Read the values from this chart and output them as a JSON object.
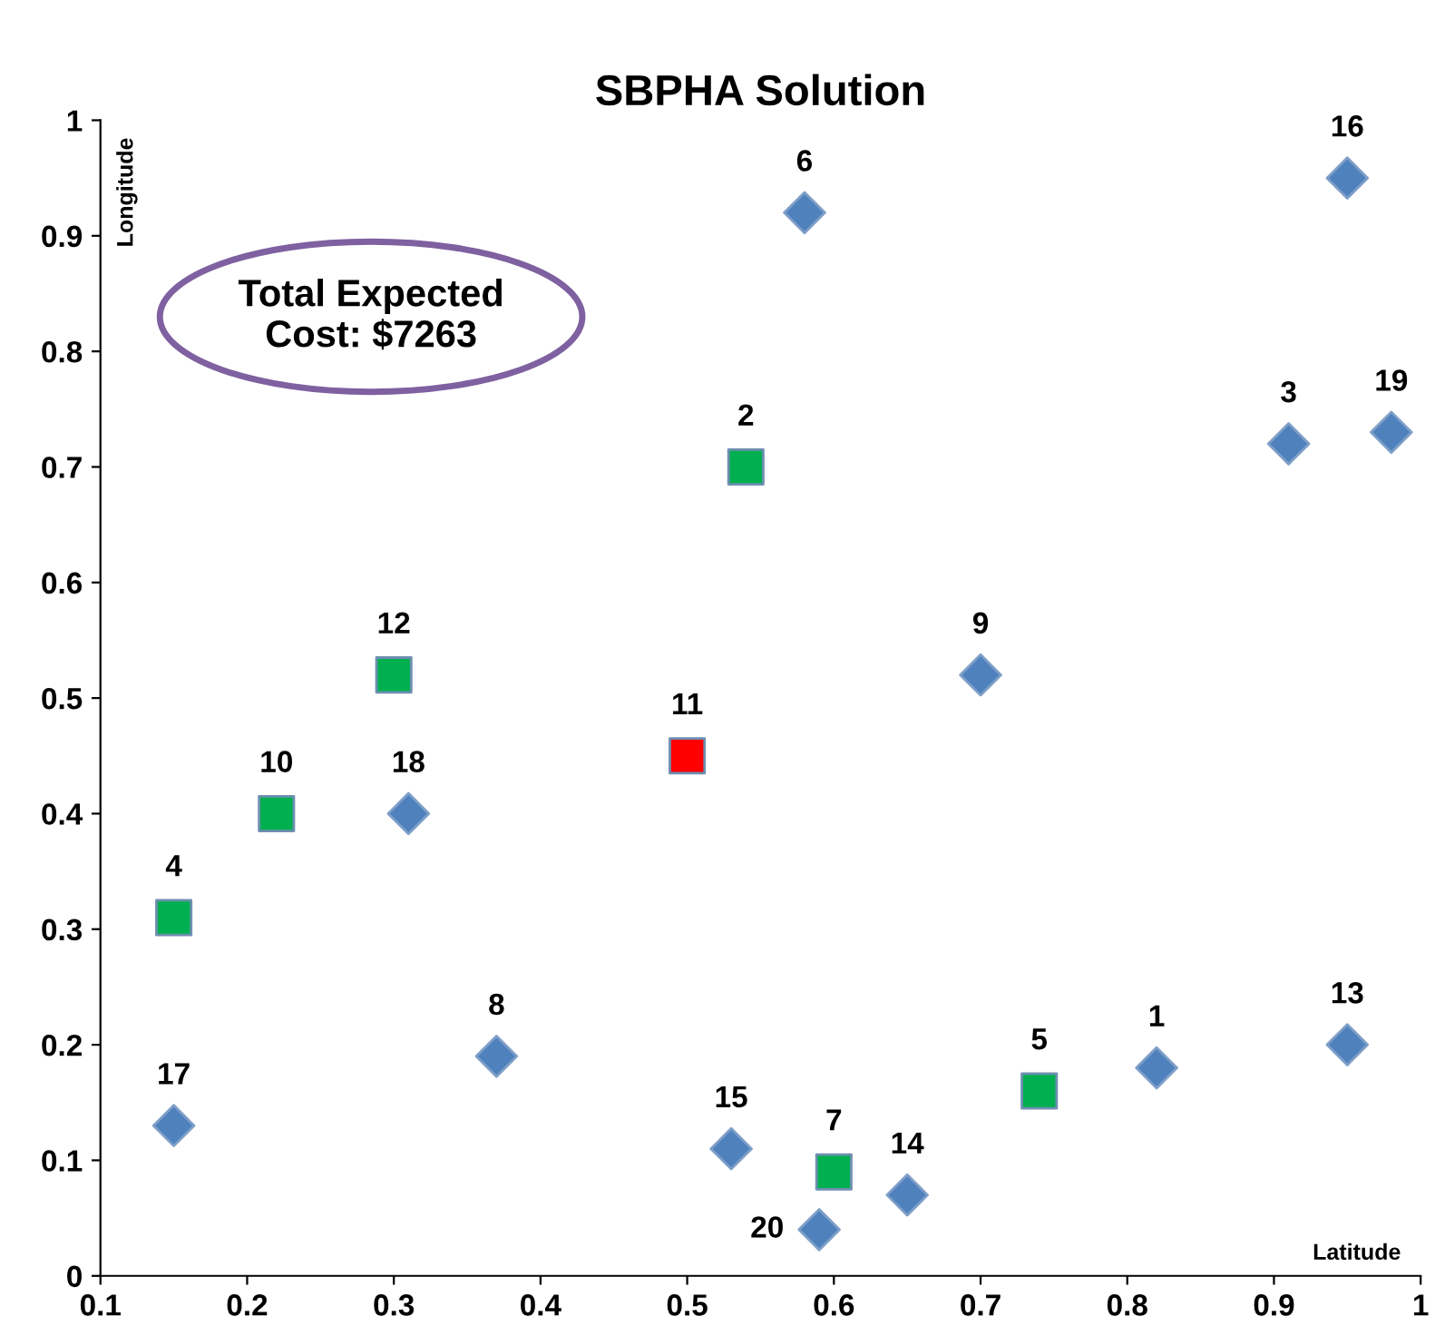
{
  "chart_data": {
    "type": "scatter",
    "title": "SBPHA Solution",
    "xlabel": "Latitude",
    "ylabel": "Longitude",
    "xlim": [
      0.1,
      1
    ],
    "ylim": [
      0,
      1
    ],
    "xticks": [
      0.1,
      0.2,
      0.3,
      0.4,
      0.5,
      0.6,
      0.7,
      0.8,
      0.9,
      1
    ],
    "yticks": [
      0,
      0.1,
      0.2,
      0.3,
      0.4,
      0.5,
      0.6,
      0.7,
      0.8,
      0.9,
      1
    ],
    "grid": false,
    "legend": false,
    "series": [
      {
        "color": "#4f81bd",
        "marker": "diamond",
        "x": [
          0.95,
          0.58,
          0.91,
          0.98,
          0.7,
          0.31,
          0.37,
          0.15,
          0.53,
          0.65,
          0.59,
          0.82,
          0.95
        ],
        "values": [
          0.95,
          0.92,
          0.72,
          0.73,
          0.52,
          0.4,
          0.19,
          0.13,
          0.11,
          0.07,
          0.04,
          0.18,
          0.2
        ]
      },
      {
        "color": "#00b050",
        "marker": "square",
        "x": [
          0.54,
          0.3,
          0.22,
          0.15,
          0.6,
          0.74
        ],
        "values": [
          0.7,
          0.52,
          0.4,
          0.31,
          0.09,
          0.16
        ]
      },
      {
        "color": "#ff0000",
        "marker": "square",
        "x": [
          0.5
        ],
        "values": [
          0.45
        ]
      }
    ],
    "annotations": [
      "Total Expected\nCost: $7263",
      {
        "text": "16",
        "x": 0.95,
        "y": 0.95
      },
      {
        "text": "6",
        "x": 0.58,
        "y": 0.92
      },
      {
        "text": "3",
        "x": 0.91,
        "y": 0.72
      },
      {
        "text": "19",
        "x": 0.98,
        "y": 0.73
      },
      {
        "text": "9",
        "x": 0.7,
        "y": 0.52
      },
      {
        "text": "18",
        "x": 0.31,
        "y": 0.4
      },
      {
        "text": "8",
        "x": 0.37,
        "y": 0.19
      },
      {
        "text": "17",
        "x": 0.15,
        "y": 0.13
      },
      {
        "text": "15",
        "x": 0.53,
        "y": 0.11
      },
      {
        "text": "14",
        "x": 0.65,
        "y": 0.07
      },
      {
        "text": "20",
        "x": 0.59,
        "y": 0.04
      },
      {
        "text": "1",
        "x": 0.82,
        "y": 0.18
      },
      {
        "text": "13",
        "x": 0.95,
        "y": 0.2
      },
      {
        "text": "2",
        "x": 0.54,
        "y": 0.7
      },
      {
        "text": "12",
        "x": 0.3,
        "y": 0.52
      },
      {
        "text": "10",
        "x": 0.22,
        "y": 0.4
      },
      {
        "text": "4",
        "x": 0.15,
        "y": 0.31
      },
      {
        "text": "7",
        "x": 0.6,
        "y": 0.09
      },
      {
        "text": "5",
        "x": 0.74,
        "y": 0.16
      },
      {
        "text": "11",
        "x": 0.5,
        "y": 0.45
      }
    ]
  }
}
